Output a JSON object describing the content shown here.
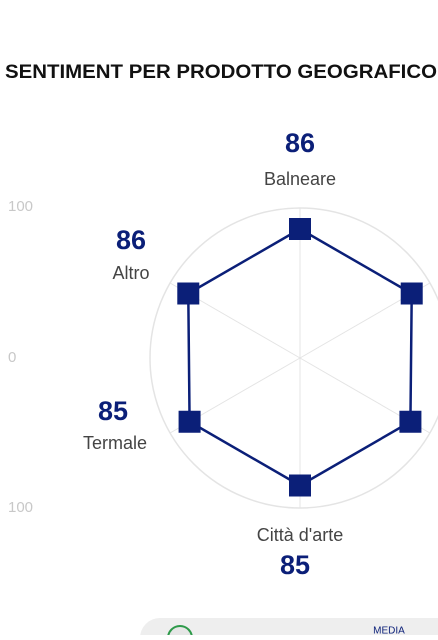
{
  "chart_data": {
    "type": "radar",
    "title": "SENTIMENT PER PRODOTTO GEOGRAFICO",
    "categories": [
      "Balneare",
      null,
      null,
      "Città d'arte",
      "Termale",
      "Altro"
    ],
    "values": [
      86,
      86,
      85,
      85,
      85,
      86
    ],
    "color": "#0b1f78",
    "rlim": [
      0,
      100
    ],
    "side_axis_labels": [
      "100",
      "0",
      "100"
    ],
    "footer_label": "MEDIA"
  }
}
